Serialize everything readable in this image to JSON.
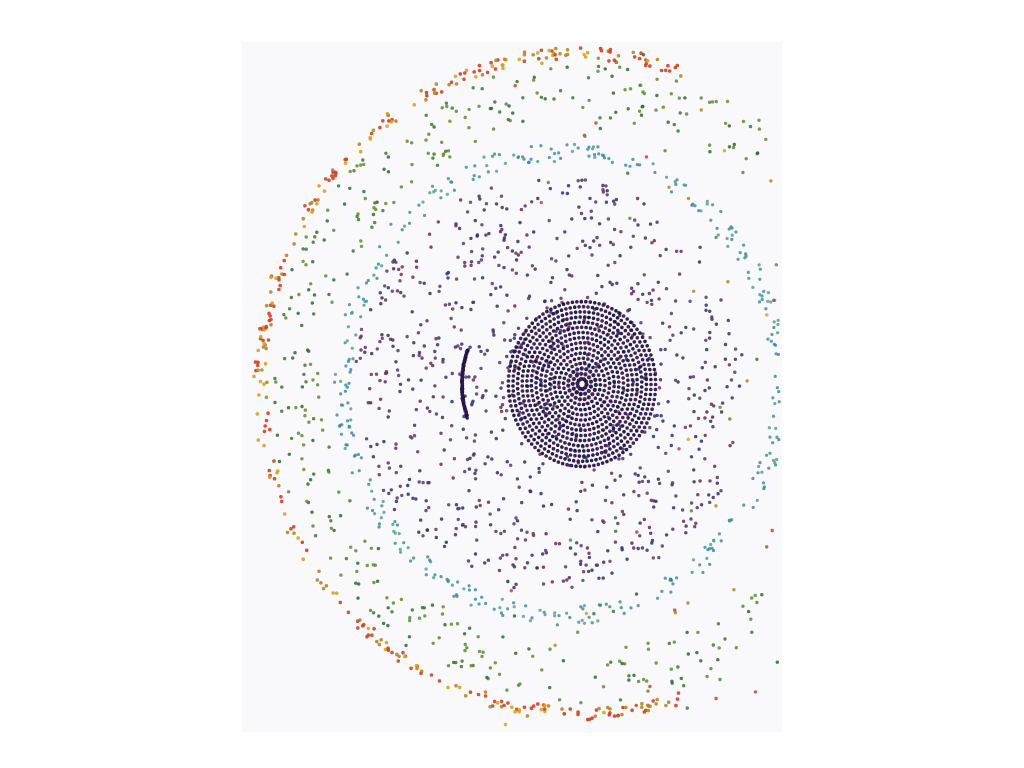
{
  "figure": {
    "kind": "dot-pattern",
    "background_color": "#f9f8fa",
    "page_background": "#ffffff",
    "palette": {
      "outer_rim": [
        "#e03a1e",
        "#d9a321",
        "#c7472b",
        "#b38a2a"
      ],
      "outer_band": [
        "#3e7a2a",
        "#5a8f34",
        "#2f6b33",
        "#6a8a2c"
      ],
      "middle_ring": [
        "#2f8f9a",
        "#4b9f8f",
        "#3a7fb0"
      ],
      "inner_field": [
        "#3b2f6b",
        "#6b2a5a",
        "#2a2f7a",
        "#5a3a6a"
      ],
      "target": [
        "#1c1440",
        "#3a1850",
        "#27184a"
      ]
    }
  }
}
